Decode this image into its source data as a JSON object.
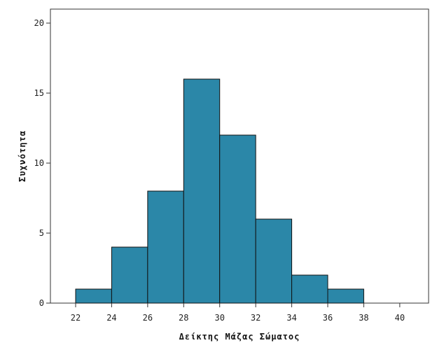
{
  "chart_data": {
    "type": "bar",
    "histogram": true,
    "xlabel": "Δείκτης Μάζας Σώματος",
    "ylabel": "Συχνότητα",
    "bins": [
      {
        "start": 22,
        "end": 24,
        "count": 1
      },
      {
        "start": 24,
        "end": 26,
        "count": 4
      },
      {
        "start": 26,
        "end": 28,
        "count": 8
      },
      {
        "start": 28,
        "end": 30,
        "count": 16
      },
      {
        "start": 30,
        "end": 32,
        "count": 12
      },
      {
        "start": 32,
        "end": 34,
        "count": 6
      },
      {
        "start": 34,
        "end": 36,
        "count": 2
      },
      {
        "start": 36,
        "end": 38,
        "count": 1
      }
    ],
    "x_ticks": [
      "22",
      "24",
      "26",
      "28",
      "30",
      "32",
      "34",
      "36",
      "38",
      "40"
    ],
    "y_ticks": [
      "0",
      "5",
      "10",
      "15",
      "20"
    ],
    "xlim": [
      20.6,
      41.6
    ],
    "ylim": [
      0,
      21
    ],
    "bar_color": "#2b87a8",
    "grid": false,
    "legend": "none"
  }
}
